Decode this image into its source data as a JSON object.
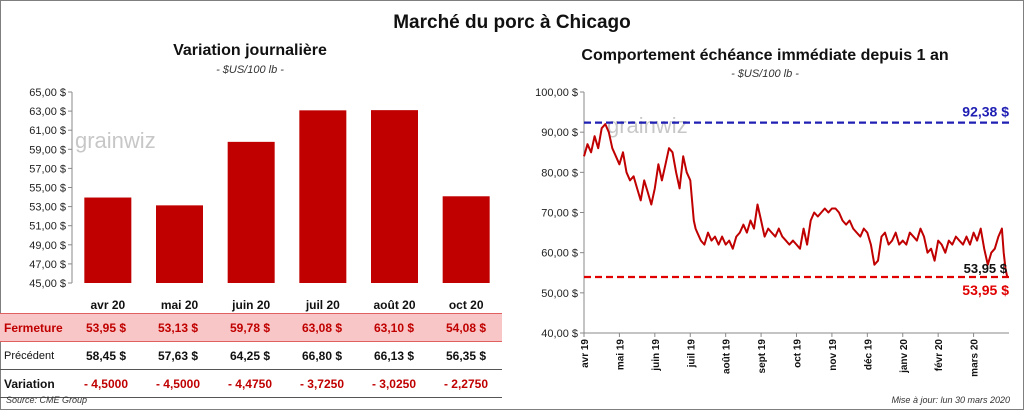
{
  "title": "Marché du porc à Chicago",
  "left_chart": {
    "title": "Variation journalière",
    "subtitle": "- $US/100 lb -"
  },
  "right_chart": {
    "title": "Comportement échéance immédiate depuis 1 an",
    "subtitle": "- $US/100 lb -"
  },
  "watermark": "grainwiz",
  "table": {
    "rows": [
      {
        "label": "Fermeture",
        "values": [
          "53,95 $",
          "53,13 $",
          "59,78 $",
          "63,08 $",
          "63,10 $",
          "54,08 $"
        ]
      },
      {
        "label": "Précédent",
        "values": [
          "58,45 $",
          "57,63 $",
          "64,25 $",
          "66,80 $",
          "66,13 $",
          "56,35 $"
        ]
      },
      {
        "label": "Variation",
        "values": [
          "- 4,5000",
          "- 4,5000",
          "- 4,4750",
          "- 3,7250",
          "- 3,0250",
          "- 2,2750"
        ]
      }
    ]
  },
  "footer": {
    "source": "Source: CME Group",
    "update": "Mise à jour: lun 30 mars 2020"
  },
  "colors": {
    "bar": "#c00000",
    "line": "#c00000",
    "high_line": "#1f1fb4",
    "low_line": "#e00000",
    "close_row_bg": "#f8c6c6"
  },
  "chart_data": [
    {
      "type": "bar",
      "title": "Variation journalière",
      "subtitle": "- $US/100 lb -",
      "categories": [
        "avr 20",
        "mai 20",
        "juin 20",
        "juil 20",
        "août 20",
        "oct 20"
      ],
      "values": [
        53.95,
        53.13,
        59.78,
        63.08,
        63.1,
        54.08
      ],
      "ylim": [
        45,
        65
      ],
      "yticks": [
        "45,00 $",
        "47,00 $",
        "49,00 $",
        "51,00 $",
        "53,00 $",
        "55,00 $",
        "57,00 $",
        "59,00 $",
        "61,00 $",
        "63,00 $",
        "65,00 $"
      ],
      "grid": false
    },
    {
      "type": "line",
      "title": "Comportement échéance immédiate depuis 1 an",
      "subtitle": "- $US/100 lb -",
      "xticks": [
        "avr 19",
        "mai 19",
        "juin 19",
        "juil 19",
        "août 19",
        "sept 19",
        "oct 19",
        "nov 19",
        "déc 19",
        "janv 20",
        "févr 20",
        "mars 20"
      ],
      "yticks": [
        "40,00 $",
        "50,00 $",
        "60,00 $",
        "70,00 $",
        "80,00 $",
        "90,00 $",
        "100,00 $"
      ],
      "ylim": [
        40,
        100
      ],
      "x_range": [
        0,
        12
      ],
      "series": [
        {
          "x": [
            0,
            0.1,
            0.2,
            0.3,
            0.4,
            0.5,
            0.6,
            0.7,
            0.8,
            0.9,
            1.0,
            1.1,
            1.2,
            1.3,
            1.4,
            1.5,
            1.6,
            1.7,
            1.8,
            1.9,
            2.0,
            2.1,
            2.2,
            2.3,
            2.4,
            2.5,
            2.6,
            2.7,
            2.8,
            2.9,
            3.0,
            3.1,
            3.15,
            3.2,
            3.3,
            3.4,
            3.5,
            3.6,
            3.7,
            3.8,
            3.9,
            4.0,
            4.1,
            4.2,
            4.3,
            4.4,
            4.5,
            4.6,
            4.7,
            4.8,
            4.9,
            5.0,
            5.1,
            5.2,
            5.3,
            5.4,
            5.5,
            5.6,
            5.7,
            5.8,
            5.9,
            6.0,
            6.1,
            6.2,
            6.3,
            6.4,
            6.5,
            6.6,
            6.7,
            6.8,
            6.9,
            7.0,
            7.1,
            7.2,
            7.3,
            7.4,
            7.5,
            7.6,
            7.7,
            7.8,
            7.9,
            8.0,
            8.1,
            8.2,
            8.3,
            8.4,
            8.5,
            8.6,
            8.7,
            8.8,
            8.9,
            9.0,
            9.1,
            9.2,
            9.3,
            9.4,
            9.5,
            9.6,
            9.7,
            9.8,
            9.9,
            10.0,
            10.1,
            10.2,
            10.3,
            10.4,
            10.5,
            10.6,
            10.7,
            10.8,
            10.9,
            11.0,
            11.1,
            11.2,
            11.3,
            11.4,
            11.5,
            11.6,
            11.7,
            11.8,
            11.85,
            11.9,
            11.95
          ],
          "y": [
            84,
            87,
            85,
            89,
            86,
            91,
            92,
            90,
            86,
            84,
            82,
            85,
            80,
            78,
            79,
            76,
            73,
            78,
            75,
            72,
            76,
            82,
            78,
            82,
            86,
            85,
            80,
            76,
            84,
            80,
            78,
            68,
            66,
            65,
            63,
            62,
            65,
            63,
            64,
            62,
            64,
            62,
            63,
            61,
            64,
            65,
            67,
            65,
            68,
            66,
            72,
            68,
            64,
            66,
            65,
            64,
            66,
            64,
            63,
            62,
            63,
            62,
            61,
            66,
            62,
            68,
            70,
            69,
            70,
            71,
            70,
            71,
            71,
            70,
            68,
            67,
            68,
            66,
            65,
            64,
            66,
            65,
            62,
            57,
            58,
            64,
            65,
            62,
            63,
            65,
            62,
            63,
            62,
            65,
            64,
            63,
            66,
            64,
            60,
            61,
            58,
            63,
            62,
            60,
            63,
            62,
            64,
            63,
            62,
            64,
            62,
            65,
            63,
            66,
            61,
            57,
            60,
            61,
            64,
            66,
            60,
            56,
            54
          ]
        }
      ],
      "reference_lines": [
        {
          "value": 92.38,
          "label": "92,38 $",
          "style": "dashed",
          "color": "#1f1fb4"
        },
        {
          "value": 53.95,
          "label": "53,95 $",
          "style": "dashed",
          "color": "#e00000"
        }
      ],
      "last_value_label": "53,95 $",
      "grid": false
    }
  ]
}
